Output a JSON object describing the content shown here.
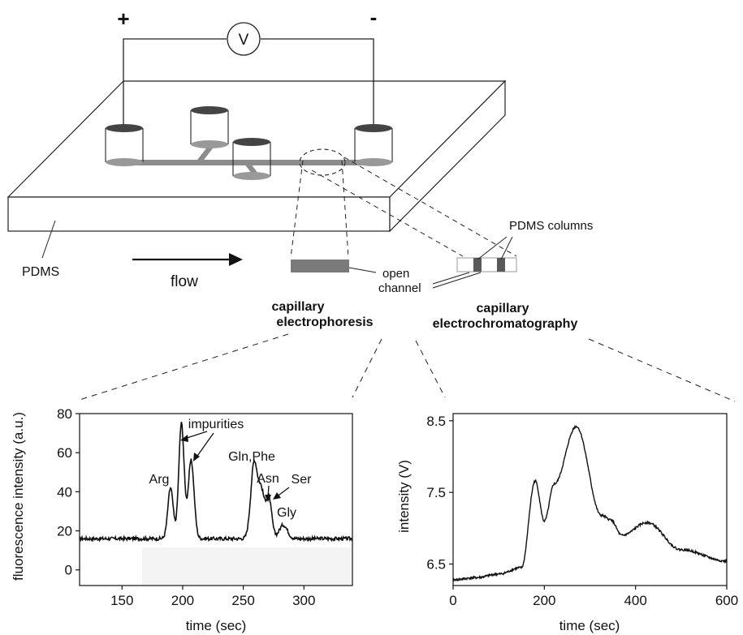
{
  "labels": {
    "plus": "+",
    "minus": "-",
    "voltmeter": "V",
    "pdms": "PDMS",
    "flow": "flow",
    "pdms_columns": "PDMS columns",
    "open_channel_line1": "open",
    "open_channel_line2": "channel",
    "ce_line1": "capillary",
    "ce_line2": "electrophoresis",
    "cec_line1": "capillary",
    "cec_line2": "electrochromatography"
  },
  "chart_data": [
    {
      "type": "line",
      "xlabel": "time (sec)",
      "ylabel": "fluorescence intensity (a.u.)",
      "xlim": [
        115,
        340
      ],
      "ylim": [
        -8,
        80
      ],
      "xticks": [
        150,
        200,
        250,
        300
      ],
      "yticks": [
        0,
        20,
        40,
        60,
        80
      ],
      "baseline": 16,
      "peaks": [
        {
          "x": 190,
          "y": 42,
          "label": "Arg"
        },
        {
          "x": 199,
          "y": 75,
          "label": "impurities"
        },
        {
          "x": 207,
          "y": 56,
          "label": "impurities"
        },
        {
          "x": 259,
          "y": 55,
          "label": "Gln,Phe"
        },
        {
          "x": 265,
          "y": 38,
          "label": "Asn"
        },
        {
          "x": 271,
          "y": 37,
          "label": "Ser"
        },
        {
          "x": 283,
          "y": 23,
          "label": "Gly"
        }
      ],
      "annotations": [
        "impurities",
        "Arg",
        "Gln,Phe",
        "Asn",
        "Ser",
        "Gly"
      ]
    },
    {
      "type": "line",
      "xlabel": "time (sec)",
      "ylabel": "intensity (V)",
      "xlim": [
        0,
        600
      ],
      "ylim": [
        6.2,
        8.6
      ],
      "xticks": [
        0,
        200,
        400,
        600
      ],
      "yticks": [
        "6.5",
        "7.5",
        "8.5"
      ],
      "points": [
        [
          0,
          6.28
        ],
        [
          50,
          6.31
        ],
        [
          100,
          6.36
        ],
        [
          150,
          6.45
        ],
        [
          180,
          7.66
        ],
        [
          200,
          7.1
        ],
        [
          222,
          7.62
        ],
        [
          270,
          8.42
        ],
        [
          325,
          7.18
        ],
        [
          345,
          7.12
        ],
        [
          370,
          6.9
        ],
        [
          425,
          7.08
        ],
        [
          500,
          6.7
        ],
        [
          600,
          6.54
        ]
      ]
    }
  ]
}
